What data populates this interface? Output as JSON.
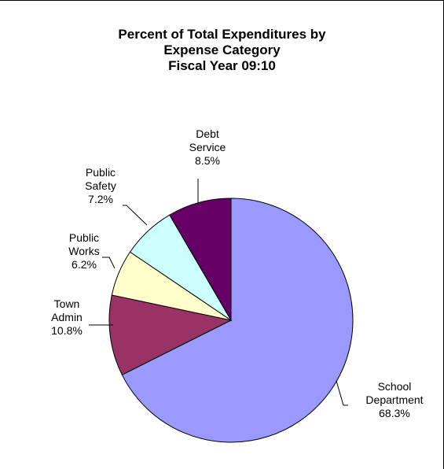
{
  "chart_data": {
    "type": "pie",
    "title": [
      "Percent of Total Expenditures by",
      "Expense Category",
      "Fiscal Year 09:10"
    ],
    "slices": [
      {
        "label": [
          "School",
          "Department"
        ],
        "value": 68.3,
        "value_label": "68.3%",
        "color": "#9999ff"
      },
      {
        "label": [
          "Town",
          "Admin"
        ],
        "value": 10.8,
        "value_label": "10.8%",
        "color": "#993366"
      },
      {
        "label": [
          "Public",
          "Works"
        ],
        "value": 6.2,
        "value_label": "6.2%",
        "color": "#ffffcc"
      },
      {
        "label": [
          "Public",
          "Safety"
        ],
        "value": 7.2,
        "value_label": "7.2%",
        "color": "#ccffff"
      },
      {
        "label": [
          "Debt",
          "Service"
        ],
        "value": 8.5,
        "value_label": "8.5%",
        "color": "#660066"
      }
    ],
    "start_angle": "12 o'clock",
    "direction": "clockwise",
    "legend": "none"
  }
}
